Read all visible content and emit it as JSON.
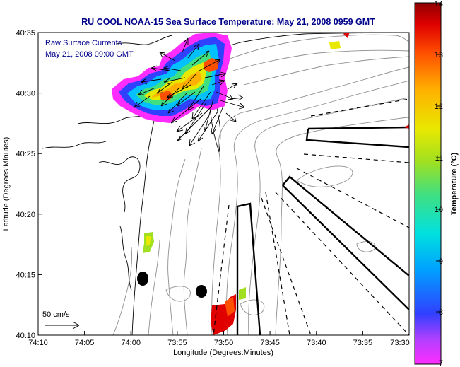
{
  "title": "RU COOL  NOAA-15  Sea Surface Temperature:  May 21, 2008 0959 GMT",
  "legend_lines": [
    "Raw Surface Currents",
    "May 21, 2008 09:00 GMT"
  ],
  "scale_label": "50 cm/s",
  "colorbar": {
    "label": "Temperature (°C)",
    "ticks": [
      "7",
      "8",
      "9",
      "10",
      "11",
      "12",
      "13",
      "14"
    ],
    "min": 7,
    "max": 14
  },
  "axes": {
    "xlabel": "Longitude (Degrees:Minutes)",
    "ylabel": "Latitude (Degrees:Minutes)",
    "x_ticks": [
      "74:10",
      "74:05",
      "74:00",
      "73:55",
      "73:50",
      "73:45",
      "73:40",
      "73:35",
      "73:30"
    ],
    "y_ticks": [
      "40:35",
      "40:30",
      "40:25",
      "40:20",
      "40:15",
      "40:10"
    ]
  },
  "colors": {
    "title": "#00008b",
    "annotation": "#00008b",
    "land_outline": "#000000",
    "bathymetry": "#909090"
  }
}
